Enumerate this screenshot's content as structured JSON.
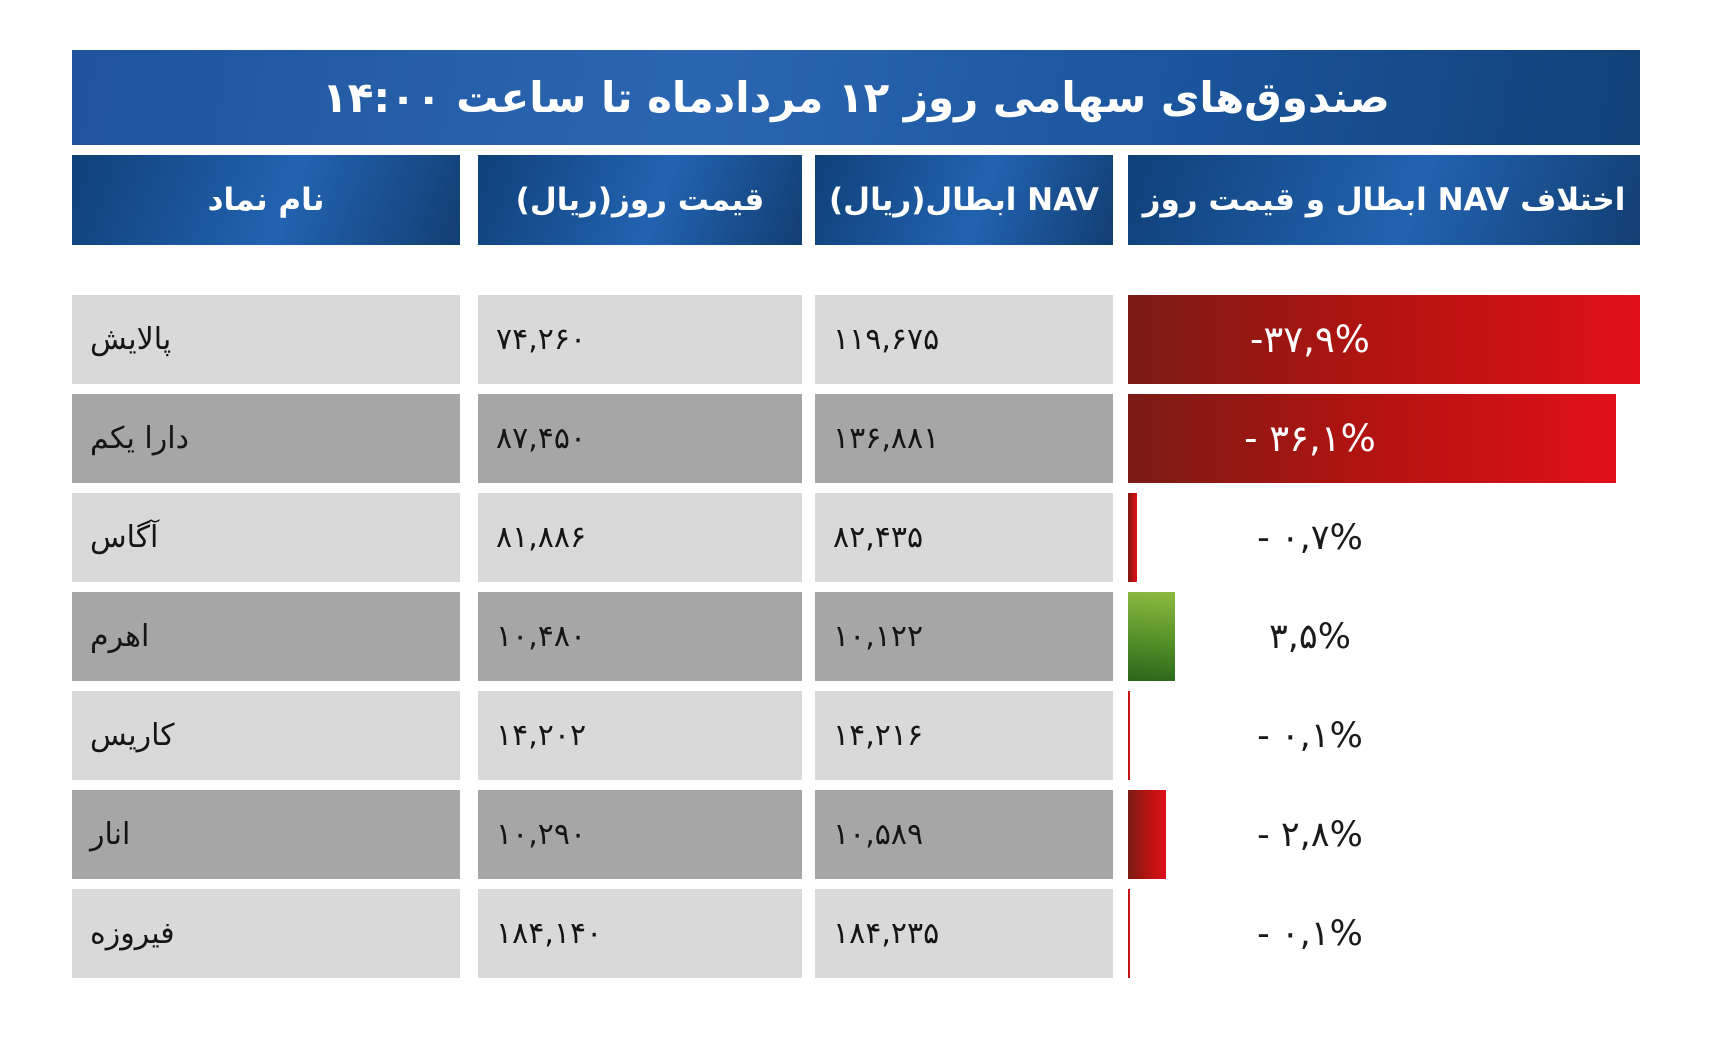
{
  "title": "صندوق‌های سهامی روز ۱۲ مردادماه تا ساعت ۱۴:۰۰",
  "columns": {
    "name": "نام نماد",
    "price": "قیمت روز(ریال)",
    "nav": "NAV ابطال(ریال)",
    "diff": "اختلاف NAV ابطال و قیمت روز"
  },
  "rows": [
    {
      "name": "پالایش",
      "price": "۷۴,۲۶۰",
      "nav": "۱۱۹,۶۷۵",
      "diff_label": "-۳۷,۹%",
      "diff_pct": -37.9
    },
    {
      "name": "دارا یکم",
      "price": "۸۷,۴۵۰",
      "nav": "۱۳۶,۸۸۱",
      "diff_label": "- ۳۶,۱%",
      "diff_pct": -36.1
    },
    {
      "name": "آگاس",
      "price": "۸۱,۸۸۶",
      "nav": "۸۲,۴۳۵",
      "diff_label": "- ۰,۷%",
      "diff_pct": -0.7
    },
    {
      "name": "اهرم",
      "price": "۱۰,۴۸۰",
      "nav": "۱۰,۱۲۲",
      "diff_label": "۳,۵%",
      "diff_pct": 3.5
    },
    {
      "name": "کاریس",
      "price": "۱۴,۲۰۲",
      "nav": "۱۴,۲۱۶",
      "diff_label": "- ۰,۱%",
      "diff_pct": -0.1
    },
    {
      "name": "انار",
      "price": "۱۰,۲۹۰",
      "nav": "۱۰,۵۸۹",
      "diff_label": "- ۲,۸%",
      "diff_pct": -2.8
    },
    {
      "name": "فیروزه",
      "price": "۱۸۴,۱۴۰",
      "nav": "۱۸۴,۲۳۵",
      "diff_label": "- ۰,۱%",
      "diff_pct": -0.1
    }
  ],
  "colors": {
    "header_blue_dark": "#0f4078",
    "header_blue_light": "#2263b0",
    "negative_bar_dark": "#7a1b15",
    "negative_bar_bright": "#e0101a",
    "positive_bar_light": "#8cbb41",
    "positive_bar_dark": "#2a651b",
    "row_light_gray": "#d9d9d9",
    "row_dark_gray": "#a6a6a6",
    "header_text": "#ffffff",
    "data_text": "#151515"
  },
  "chart_data": {
    "type": "bar",
    "orientation": "horizontal",
    "title": "صندوق‌های سهامی روز ۱۲ مردادماه تا ساعت ۱۴:۰۰",
    "categories": [
      "پالایش",
      "دارا یکم",
      "آگاس",
      "اهرم",
      "کاریس",
      "انار",
      "فیروزه"
    ],
    "series": [
      {
        "name": "قیمت روز(ریال)",
        "values": [
          74260,
          87450,
          81886,
          10480,
          14202,
          10290,
          184140
        ]
      },
      {
        "name": "NAV ابطال(ریال)",
        "values": [
          119675,
          136881,
          82435,
          10122,
          14216,
          10589,
          184235
        ]
      },
      {
        "name": "اختلاف NAV ابطال و قیمت روز (%)",
        "values": [
          -37.9,
          -36.1,
          -0.7,
          3.5,
          -0.1,
          -2.8,
          -0.1
        ]
      }
    ],
    "bar_axis_range_pct": [
      0,
      37.9
    ],
    "negative_color": "#d01217",
    "positive_color": "#559026",
    "grid": false,
    "legend": false
  }
}
